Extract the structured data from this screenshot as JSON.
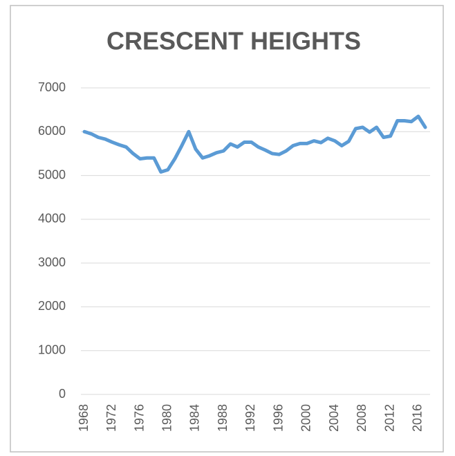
{
  "chart_data": {
    "type": "line",
    "title": "CRESCENT HEIGHTS",
    "x": [
      1968,
      1969,
      1970,
      1971,
      1972,
      1973,
      1974,
      1975,
      1976,
      1977,
      1978,
      1979,
      1980,
      1981,
      1982,
      1983,
      1984,
      1985,
      1986,
      1987,
      1988,
      1989,
      1990,
      1991,
      1992,
      1993,
      1994,
      1995,
      1996,
      1997,
      1998,
      1999,
      2000,
      2001,
      2002,
      2003,
      2004,
      2005,
      2006,
      2007,
      2008,
      2009,
      2010,
      2011,
      2012,
      2013,
      2014,
      2015,
      2016,
      2017
    ],
    "values": [
      6000,
      5950,
      5870,
      5830,
      5760,
      5700,
      5650,
      5500,
      5380,
      5400,
      5400,
      5080,
      5130,
      5380,
      5680,
      6000,
      5600,
      5400,
      5450,
      5520,
      5560,
      5720,
      5650,
      5760,
      5760,
      5650,
      5580,
      5500,
      5480,
      5560,
      5680,
      5730,
      5730,
      5790,
      5750,
      5850,
      5790,
      5680,
      5780,
      6070,
      6100,
      5990,
      6100,
      5870,
      5900,
      6250,
      6250,
      6230,
      6350,
      6100
    ],
    "color": "#5b9bd5",
    "xlim": [
      1967.5,
      2017.5
    ],
    "xticks": [
      1968,
      1972,
      1976,
      1980,
      1984,
      1988,
      1992,
      1996,
      2000,
      2004,
      2008,
      2012,
      2016
    ],
    "ylim": [
      0,
      7000
    ],
    "yticks": [
      0,
      1000,
      2000,
      3000,
      4000,
      5000,
      6000,
      7000
    ],
    "grid": true
  }
}
